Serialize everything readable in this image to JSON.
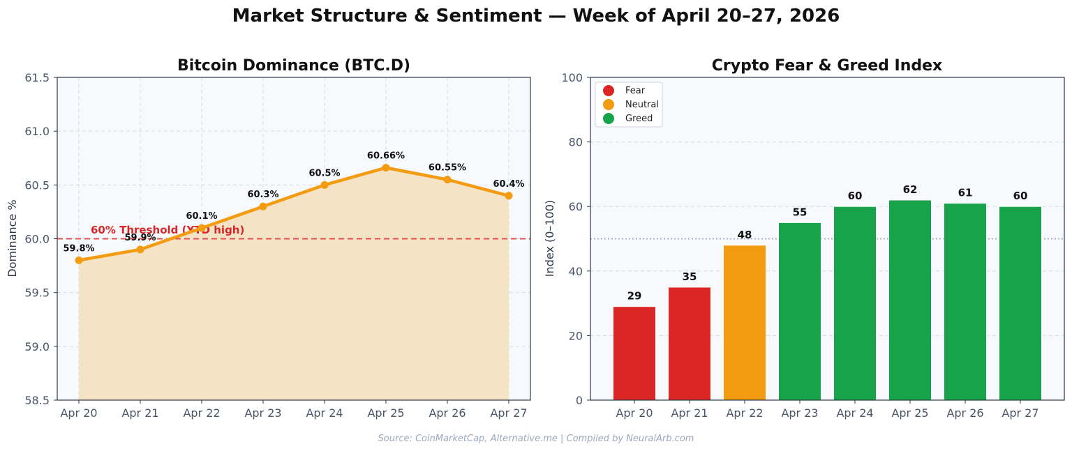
{
  "title": "Market Structure & Sentiment — Week of April 20–27, 2026",
  "source": "Source: CoinMarketCap, Alternative.me | Compiled by NeuralArb.com",
  "chart_data": [
    {
      "type": "line",
      "title": "Bitcoin Dominance (BTC.D)",
      "xlabel": "",
      "ylabel": "Dominance %",
      "categories": [
        "Apr 20",
        "Apr 21",
        "Apr 22",
        "Apr 23",
        "Apr 24",
        "Apr 25",
        "Apr 26",
        "Apr 27"
      ],
      "series": [
        {
          "values": [
            59.8,
            59.9,
            60.1,
            60.3,
            60.5,
            60.66,
            60.55,
            60.4
          ]
        }
      ],
      "data_labels": [
        "59.8%",
        "59.9%",
        "60.1%",
        "60.3%",
        "60.5%",
        "60.66%",
        "60.55%",
        "60.4%"
      ],
      "ylim": [
        58.5,
        61.5
      ],
      "yticks": [
        "58.5",
        "59.0",
        "59.5",
        "60.0",
        "60.5",
        "61.0",
        "61.5"
      ],
      "ytick_values": [
        58.5,
        59.0,
        59.5,
        60.0,
        60.5,
        61.0,
        61.5
      ],
      "area_fill": true,
      "grid": true,
      "threshold": {
        "value": 60.0,
        "label": "60% Threshold (YTD high)"
      },
      "colors": {
        "line": "#f39c12",
        "fill": "#f5e3c5",
        "threshold": "#e05252",
        "threshold_text": "#d62828",
        "background": "#f7f9fc"
      }
    },
    {
      "type": "bar",
      "title": "Crypto Fear & Greed Index",
      "xlabel": "",
      "ylabel": "Index (0–100)",
      "categories": [
        "Apr 20",
        "Apr 21",
        "Apr 22",
        "Apr 23",
        "Apr 24",
        "Apr 25",
        "Apr 26",
        "Apr 27"
      ],
      "values": [
        29,
        35,
        48,
        55,
        60,
        62,
        61,
        60
      ],
      "bar_classes": [
        "Fear",
        "Fear",
        "Neutral",
        "Greed",
        "Greed",
        "Greed",
        "Greed",
        "Greed"
      ],
      "ylim": [
        0,
        100
      ],
      "yticks": [
        "0",
        "20",
        "40",
        "60",
        "80",
        "100"
      ],
      "ytick_values": [
        0,
        20,
        40,
        60,
        80,
        100
      ],
      "reference_line": 50,
      "grid": true,
      "legend": {
        "position": "top-left",
        "entries": [
          {
            "label": "Fear",
            "color": "#dc2626"
          },
          {
            "label": "Neutral",
            "color": "#f39c12"
          },
          {
            "label": "Greed",
            "color": "#16a34a"
          }
        ]
      },
      "colors": {
        "Fear": "#dc2626",
        "Neutral": "#f39c12",
        "Greed": "#16a34a",
        "background": "#f7f9fc"
      }
    }
  ]
}
